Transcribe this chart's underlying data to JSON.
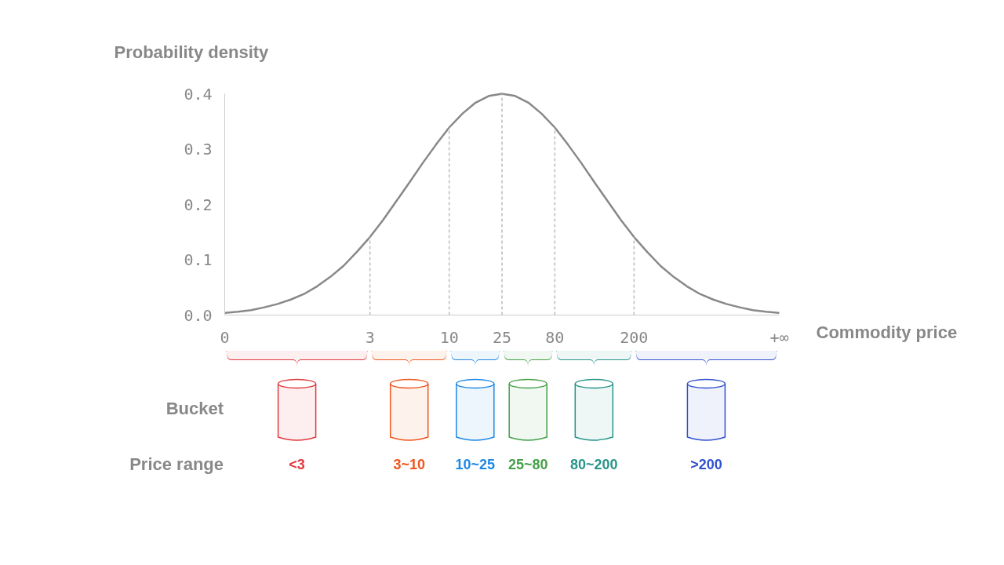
{
  "chart_data": [
    {
      "type": "line",
      "ylabel": "Probability density",
      "xlabel": "Commodity price",
      "categories": [
        "0",
        null,
        null,
        null,
        null,
        null,
        null,
        null,
        null,
        null,
        null,
        "3",
        null,
        null,
        null,
        null,
        null,
        "10",
        null,
        null,
        null,
        "25",
        null,
        null,
        null,
        "80",
        null,
        null,
        null,
        null,
        null,
        "200",
        null,
        null,
        null,
        null,
        null,
        null,
        null,
        null,
        null,
        null,
        "+∞"
      ],
      "series": [
        {
          "color": "#888888",
          "values": [
            0.004,
            0.006,
            0.009,
            0.014,
            0.02,
            0.028,
            0.038,
            0.052,
            0.069,
            0.089,
            0.114,
            0.141,
            0.172,
            0.206,
            0.24,
            0.275,
            0.308,
            0.339,
            0.364,
            0.384,
            0.396,
            0.4,
            0.396,
            0.384,
            0.364,
            0.339,
            0.308,
            0.275,
            0.24,
            0.206,
            0.172,
            0.141,
            0.114,
            0.089,
            0.069,
            0.052,
            0.038,
            0.028,
            0.02,
            0.014,
            0.009,
            0.006,
            0.004
          ]
        }
      ],
      "ylim": [
        0,
        0.4
      ],
      "yticks": [
        {
          "value": 0,
          "label": "0.0"
        },
        0.1,
        0.2,
        0.3,
        0.4
      ],
      "ref_lines": [
        {
          "axis": "x",
          "value": "3",
          "line_style": "dashed",
          "color": "#bbbbbb"
        },
        {
          "axis": "x",
          "value": "10",
          "line_style": "dashed",
          "color": "#bbbbbb"
        },
        {
          "axis": "x",
          "value": "25",
          "line_style": "dashed",
          "color": "#bbbbbb"
        },
        {
          "axis": "x",
          "value": "80",
          "line_style": "dashed",
          "color": "#bbbbbb"
        },
        {
          "axis": "x",
          "value": "200",
          "line_style": "dashed",
          "color": "#bbbbbb"
        }
      ],
      "grid": false
    },
    {
      "type": "other",
      "categories": [
        "<3",
        "3~10",
        "10~25",
        "25~80",
        "80~200",
        ">200"
      ],
      "colors": [
        "#e0393e",
        "#f0561d",
        "#1e88e5",
        "#43a047",
        "#26958a",
        "#3050d0"
      ],
      "annotations": [
        "Bucket",
        "Price range"
      ]
    }
  ]
}
